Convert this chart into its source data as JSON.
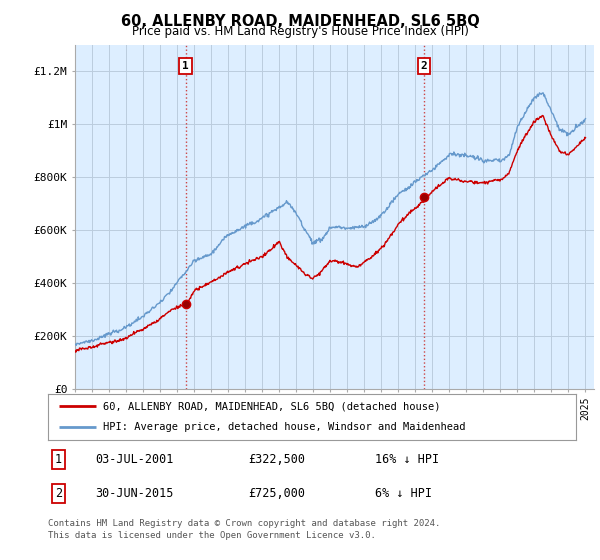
{
  "title": "60, ALLENBY ROAD, MAIDENHEAD, SL6 5BQ",
  "subtitle": "Price paid vs. HM Land Registry's House Price Index (HPI)",
  "legend_label_red": "60, ALLENBY ROAD, MAIDENHEAD, SL6 5BQ (detached house)",
  "legend_label_blue": "HPI: Average price, detached house, Windsor and Maidenhead",
  "annotation1_date": "03-JUL-2001",
  "annotation1_price": "£322,500",
  "annotation1_hpi": "16% ↓ HPI",
  "annotation1_year": 2001.5,
  "annotation1_value": 322500,
  "annotation2_date": "30-JUN-2015",
  "annotation2_price": "£725,000",
  "annotation2_hpi": "6% ↓ HPI",
  "annotation2_year": 2015.5,
  "annotation2_value": 725000,
  "ylabel_ticks": [
    "£0",
    "£200K",
    "£400K",
    "£600K",
    "£800K",
    "£1M",
    "£1.2M"
  ],
  "ytick_values": [
    0,
    200000,
    400000,
    600000,
    800000,
    1000000,
    1200000
  ],
  "ylim": [
    0,
    1300000
  ],
  "xlim_start": 1995,
  "xlim_end": 2025.5,
  "footer_line1": "Contains HM Land Registry data © Crown copyright and database right 2024.",
  "footer_line2": "This data is licensed under the Open Government Licence v3.0.",
  "background_color": "#ffffff",
  "plot_bg_color": "#ddeeff",
  "grid_color": "#bbccdd",
  "red_color": "#cc0000",
  "blue_color": "#6699cc",
  "vline_color": "#cc4444",
  "box_color": "#cc0000"
}
